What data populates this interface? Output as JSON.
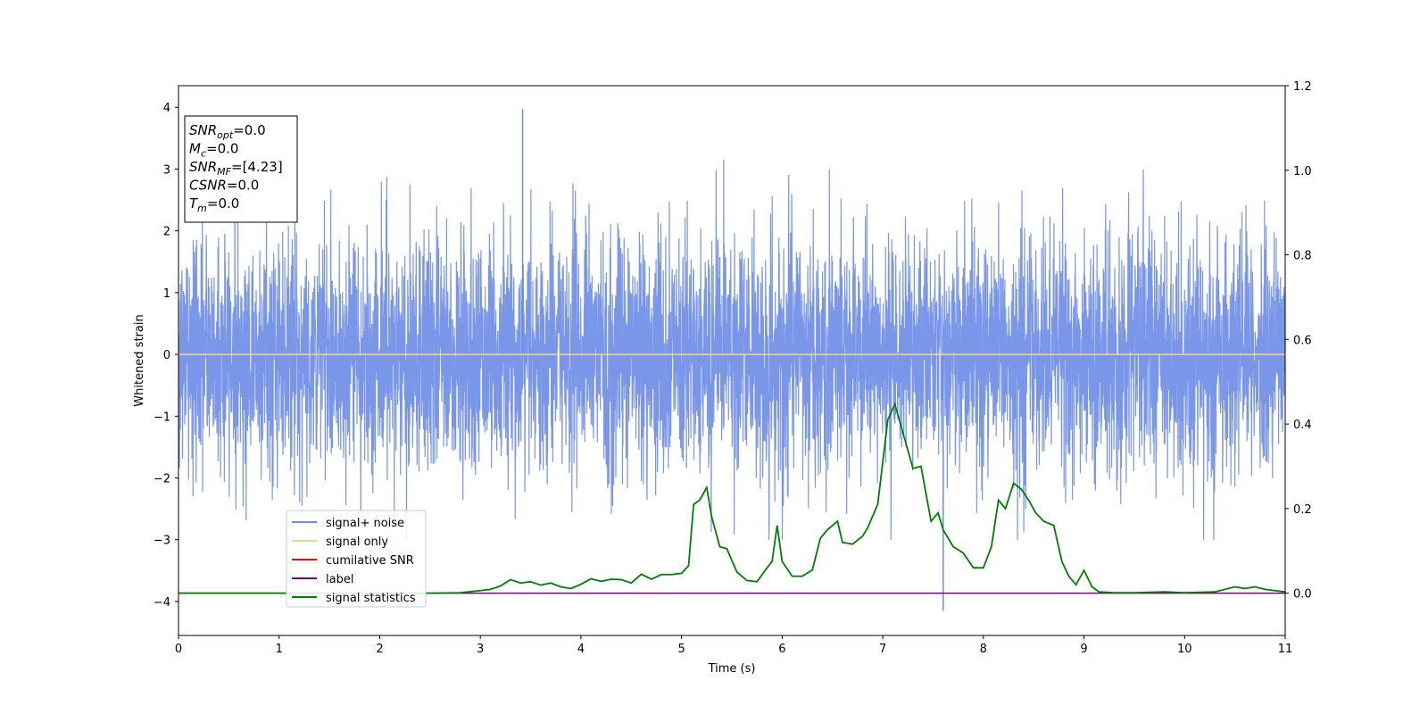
{
  "chart_data": {
    "type": "line",
    "xlabel": "Time (s)",
    "ylabel": "Whitened strain",
    "xlim": [
      0,
      11
    ],
    "ylim_left": [
      -4.55,
      4.35
    ],
    "ylim_right": [
      -0.1,
      1.2
    ],
    "x_ticks": [
      "0",
      "1",
      "2",
      "3",
      "4",
      "5",
      "6",
      "7",
      "8",
      "9",
      "10",
      "11"
    ],
    "y_ticks_left": [
      "4",
      "3",
      "2",
      "1",
      "0",
      "−1",
      "−2",
      "−3",
      "−4"
    ],
    "y_ticks_right": [
      "1.2",
      "1.0",
      "0.8",
      "0.6",
      "0.4",
      "0.2",
      "0.0"
    ],
    "grid": false,
    "legend_position": "lower-left",
    "legend": [
      {
        "label": "signal+ noise",
        "color": "#6a8be6"
      },
      {
        "label": "signal only",
        "color": "#ffd27f"
      },
      {
        "label": "cumilative SNR",
        "color": "#ff0000"
      },
      {
        "label": "label",
        "color": "#800080"
      },
      {
        "label": "signal statistics",
        "color": "#008000"
      }
    ],
    "info_box": [
      {
        "base": "SNR",
        "sub": "opt",
        "value": "=0.0"
      },
      {
        "base": "M",
        "sub": "c",
        "value": "=0.0"
      },
      {
        "base": "SNR",
        "sub": "MF",
        "value": "=[4.23]"
      },
      {
        "base": "CSNR",
        "sub": "",
        "value": "=0.0"
      },
      {
        "base": "T",
        "sub": "m",
        "value": "=0.0"
      }
    ],
    "series": [
      {
        "name": "signal+ noise",
        "axis": "left",
        "color": "#6a8be6",
        "description": "whitened noise, approx. Gaussian with envelope about +2.5 / -2.2, occasional spikes",
        "approx_extremes": {
          "max": 3.97,
          "max_at": 3.42,
          "min": -4.15,
          "min_at": 7.6
        }
      },
      {
        "name": "signal only",
        "axis": "left",
        "color": "#ffd27f",
        "x": [
          0,
          11
        ],
        "y": [
          0,
          0
        ]
      },
      {
        "name": "label",
        "axis": "right",
        "color": "#800080",
        "x": [
          0,
          11
        ],
        "y": [
          0,
          0
        ]
      },
      {
        "name": "signal statistics",
        "axis": "right",
        "color": "#008000",
        "x": [
          0,
          0.5,
          1,
          1.5,
          2,
          2.5,
          2.8,
          3,
          3.1,
          3.2,
          3.3,
          3.4,
          3.5,
          3.6,
          3.7,
          3.8,
          3.9,
          4.0,
          4.1,
          4.2,
          4.3,
          4.4,
          4.5,
          4.6,
          4.7,
          4.8,
          4.9,
          5.0,
          5.07,
          5.12,
          5.18,
          5.25,
          5.3,
          5.38,
          5.45,
          5.55,
          5.65,
          5.75,
          5.85,
          5.9,
          5.95,
          6.0,
          6.1,
          6.2,
          6.3,
          6.38,
          6.45,
          6.55,
          6.6,
          6.7,
          6.8,
          6.85,
          6.95,
          7.05,
          7.12,
          7.2,
          7.3,
          7.38,
          7.48,
          7.55,
          7.6,
          7.7,
          7.8,
          7.9,
          8.0,
          8.08,
          8.15,
          8.22,
          8.3,
          8.38,
          8.45,
          8.52,
          8.6,
          8.7,
          8.78,
          8.85,
          8.92,
          9.0,
          9.08,
          9.15,
          9.3,
          9.5,
          9.8,
          10,
          10.3,
          10.5,
          10.6,
          10.7,
          10.8,
          11
        ],
        "y": [
          0,
          0,
          0,
          0,
          0,
          0,
          0.001,
          0.006,
          0.009,
          0.017,
          0.032,
          0.024,
          0.027,
          0.019,
          0.024,
          0.015,
          0.011,
          0.021,
          0.034,
          0.028,
          0.033,
          0.032,
          0.024,
          0.045,
          0.033,
          0.044,
          0.044,
          0.047,
          0.065,
          0.21,
          0.22,
          0.25,
          0.18,
          0.11,
          0.105,
          0.05,
          0.03,
          0.027,
          0.06,
          0.075,
          0.16,
          0.075,
          0.04,
          0.04,
          0.055,
          0.13,
          0.15,
          0.17,
          0.12,
          0.116,
          0.135,
          0.155,
          0.21,
          0.41,
          0.447,
          0.38,
          0.295,
          0.3,
          0.17,
          0.19,
          0.15,
          0.11,
          0.095,
          0.06,
          0.06,
          0.11,
          0.22,
          0.2,
          0.26,
          0.245,
          0.22,
          0.19,
          0.17,
          0.16,
          0.075,
          0.04,
          0.02,
          0.054,
          0.015,
          0.003,
          0.001,
          0.001,
          0.003,
          0.001,
          0.003,
          0.015,
          0.011,
          0.015,
          0.009,
          0.003
        ]
      }
    ]
  }
}
